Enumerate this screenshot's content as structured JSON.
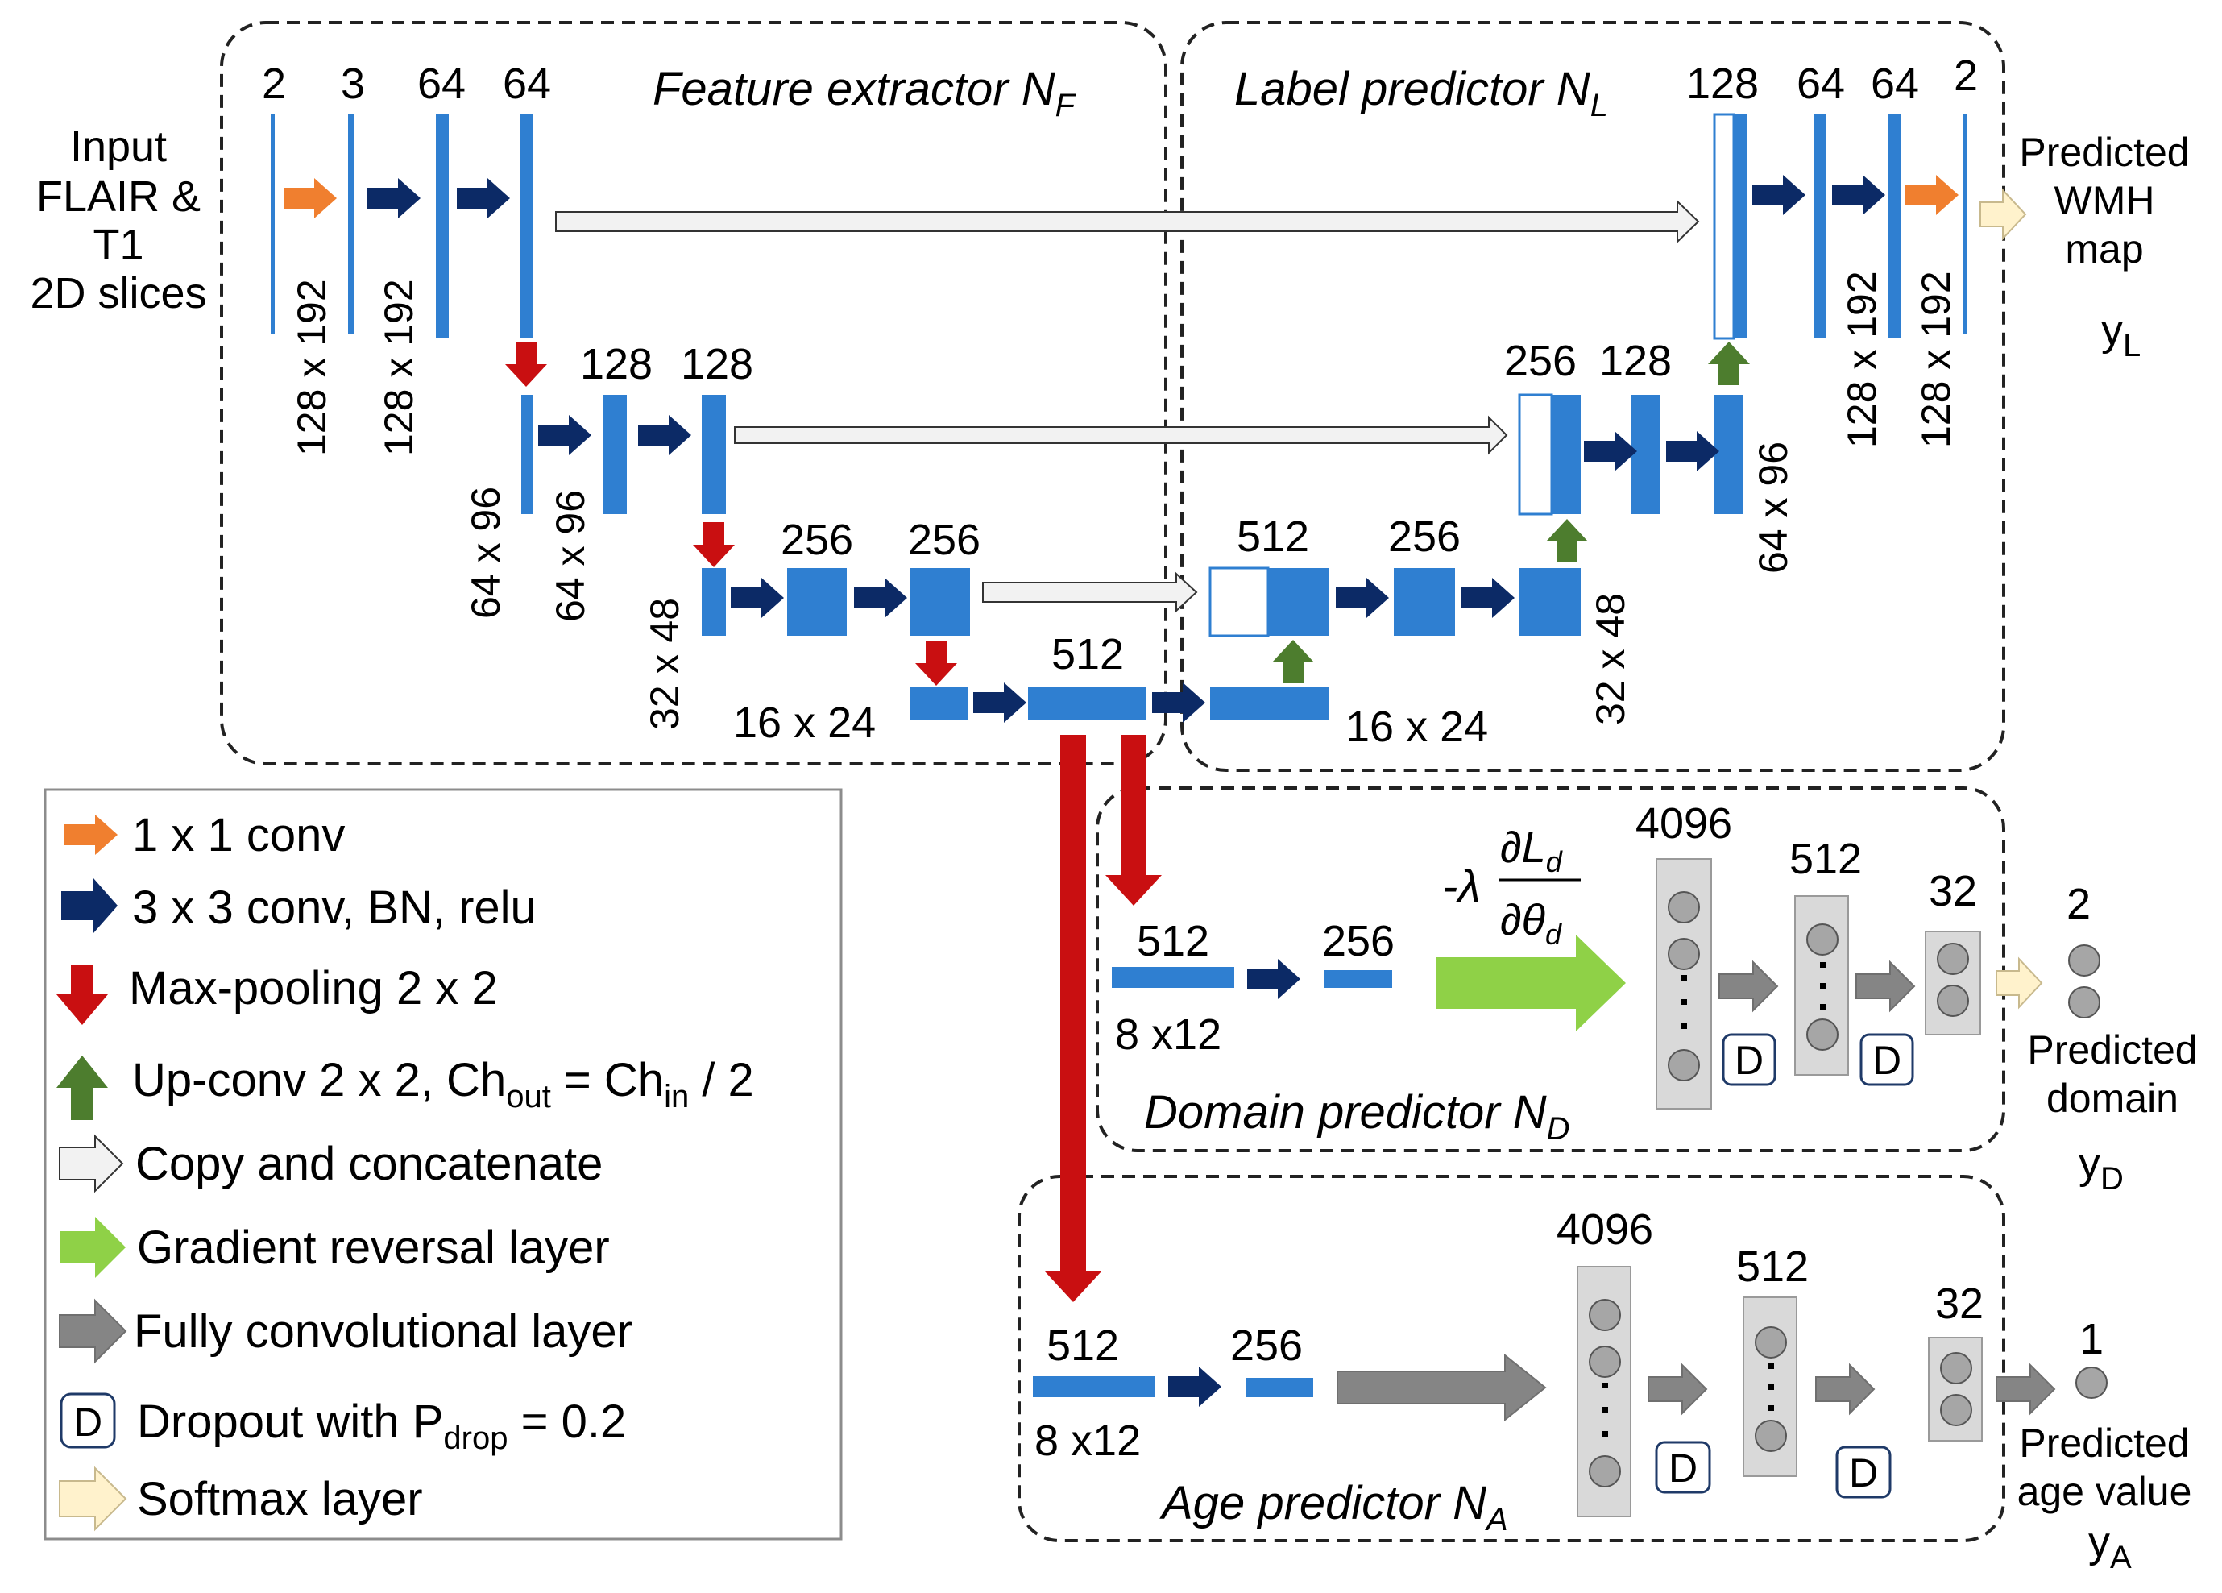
{
  "colors": {
    "block": "#2f7fd1",
    "conv3": "#0c2a66",
    "conv1": "#f07f2f",
    "pool": "#c90f11",
    "upconv": "#4d7d2e",
    "copy": "#f2f2f2",
    "grl": "#8fd147",
    "fc": "#7f7f7f",
    "softmax": "#fff2cc",
    "fcblock": "#d9d9d9"
  },
  "input_label": [
    "Input",
    "FLAIR &",
    "T1",
    "2D slices"
  ],
  "output_label": [
    "Predicted",
    "WMH",
    "map"
  ],
  "outputs": {
    "label_y": "y",
    "label_sub": "L",
    "domain_y": "y",
    "domain_sub": "D",
    "age_y": "y",
    "age_sub": "A",
    "domain_count": "2",
    "domain_text": [
      "Predicted",
      "domain"
    ],
    "age_count": "1",
    "age_text": [
      "Predicted",
      "age value"
    ]
  },
  "modules": {
    "feature_extractor": {
      "name": "Feature extractor N",
      "sub": "F"
    },
    "label_predictor": {
      "name": "Label predictor N",
      "sub": "L"
    },
    "domain_predictor": {
      "name": "Domain predictor N",
      "sub": "D"
    },
    "age_predictor": {
      "name": "Age predictor N",
      "sub": "A"
    }
  },
  "channels": {
    "l1": [
      "2",
      "3",
      "64",
      "64"
    ],
    "l2": [
      "128",
      "128"
    ],
    "l3": [
      "256",
      "256"
    ],
    "bottom": "512",
    "dec3": [
      "512",
      "256"
    ],
    "dec2": [
      "256",
      "128"
    ],
    "dec1": [
      "128",
      "64",
      "64",
      "2"
    ]
  },
  "sizes": {
    "s1": "128 x 192",
    "s2": "64 x 96",
    "s3": "32 x 48",
    "s4": "16 x 24",
    "s5": "8 x12"
  },
  "domain_branch": {
    "c1": "512",
    "c2": "256",
    "fc1": "4096",
    "fc2": "512",
    "fc3": "32",
    "size": "8 x12"
  },
  "age_branch": {
    "c1": "512",
    "c2": "256",
    "fc1": "4096",
    "fc2": "512",
    "fc3": "32",
    "size": "8 x12"
  },
  "grl_formula": {
    "prefix": "-λ",
    "num": "∂L",
    "num_sub": "d",
    "den": "∂θ",
    "den_sub": "d"
  },
  "dropout_symbol": "D",
  "legend": {
    "conv1": "1 x 1 conv",
    "conv3": "3 x 3 conv, BN, relu",
    "pool": "Max-pooling 2 x 2",
    "up_a": "Up-conv 2 x 2, Ch",
    "up_sub1": "out",
    "up_b": " = Ch",
    "up_sub2": "in",
    "up_c": " / 2",
    "copy": "Copy and concatenate",
    "grl": "Gradient reversal layer",
    "fc": "Fully convolutional layer",
    "drop_a": "Dropout with P",
    "drop_sub": "drop",
    "drop_b": " = 0.2",
    "softmax": "Softmax layer"
  }
}
